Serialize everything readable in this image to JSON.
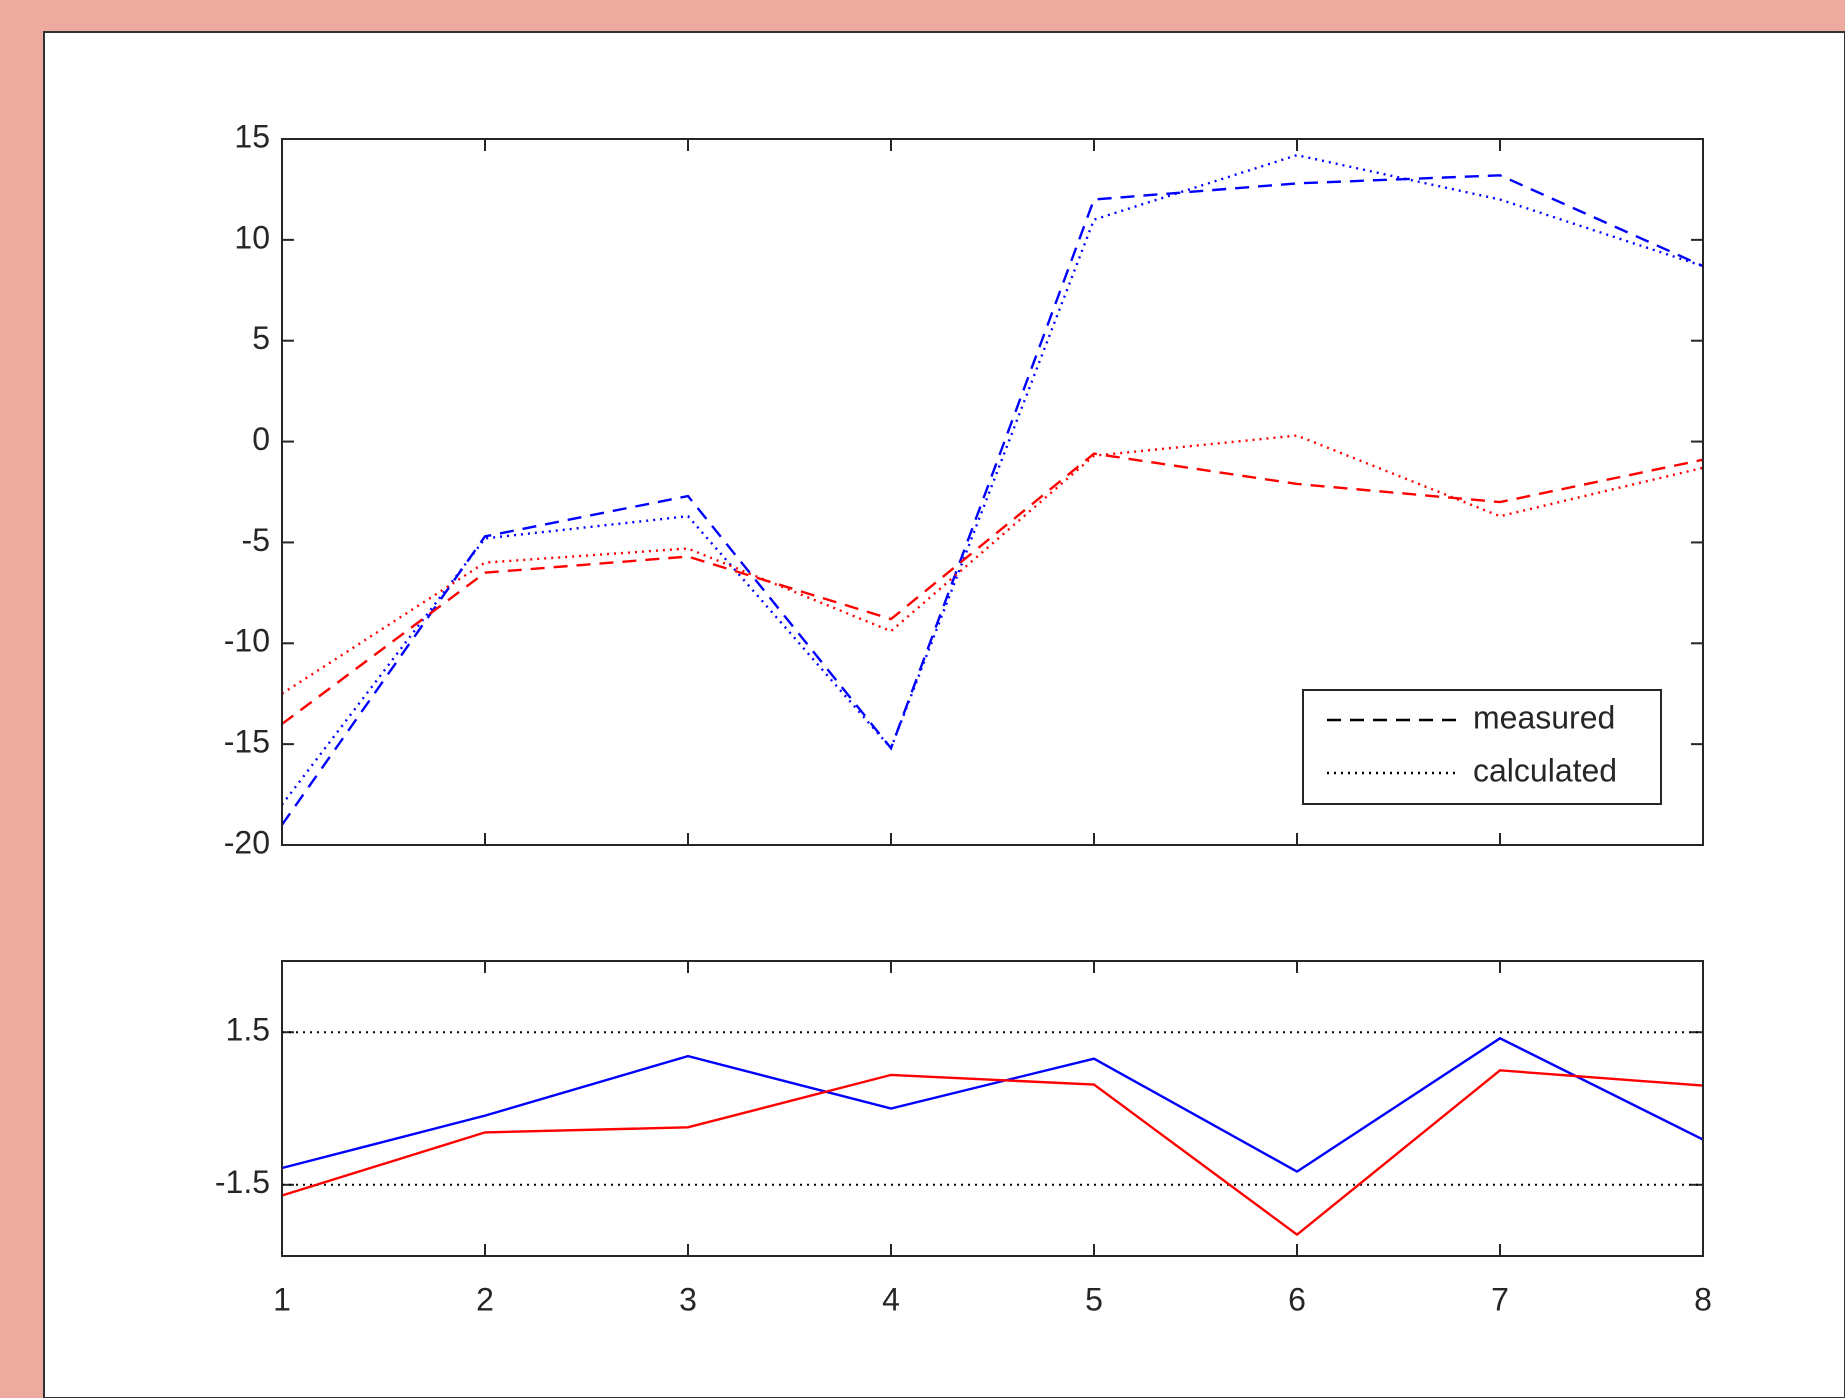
{
  "chart_data": [
    {
      "type": "line",
      "x": [
        1,
        2,
        3,
        4,
        5,
        6,
        7,
        8
      ],
      "xlim": [
        1,
        8
      ],
      "xticks": [
        1,
        2,
        3,
        4,
        5,
        6,
        7,
        8
      ],
      "ylim": [
        -20,
        15
      ],
      "yticks": [
        -20,
        -15,
        -10,
        -5,
        0,
        5,
        10,
        15
      ],
      "series": [
        {
          "color": "#0000ff",
          "style": "dashed",
          "values": [
            -19,
            -4.7,
            -2.7,
            -15.2,
            12,
            12.8,
            13.2,
            8.7
          ]
        },
        {
          "color": "#0000ff",
          "style": "dotted",
          "values": [
            -18,
            -4.8,
            -3.7,
            -15.2,
            11,
            14.2,
            12,
            8.7
          ]
        },
        {
          "color": "#ff0000",
          "style": "dashed",
          "values": [
            -14,
            -6.5,
            -5.7,
            -8.8,
            -0.6,
            -2.1,
            -3,
            -0.9
          ]
        },
        {
          "color": "#ff0000",
          "style": "dotted",
          "values": [
            -12.5,
            -6,
            -5.3,
            -9.4,
            -0.7,
            0.3,
            -3.7,
            -1.3
          ]
        }
      ],
      "legend": [
        {
          "label": "measured",
          "style": "dashed"
        },
        {
          "label": "calculated",
          "style": "dotted"
        }
      ],
      "legend_position": "lower right"
    },
    {
      "type": "line",
      "x": [
        1,
        2,
        3,
        4,
        5,
        6,
        7,
        8
      ],
      "xlim": [
        1,
        8
      ],
      "xticks": [
        1,
        2,
        3,
        4,
        5,
        6,
        7,
        8
      ],
      "ylim": [
        -2.9,
        2.9
      ],
      "yticks": [
        -1.5,
        1.5
      ],
      "grid": true,
      "series": [
        {
          "color": "#0000ff",
          "style": "solid",
          "values": [
            -1.17,
            -0.14,
            1.03,
            0,
            0.98,
            -1.24,
            1.38,
            -0.61
          ]
        },
        {
          "color": "#ff0000",
          "style": "solid",
          "values": [
            -1.71,
            -0.47,
            -0.37,
            0.66,
            0.47,
            -2.48,
            0.75,
            0.45
          ]
        }
      ]
    }
  ]
}
